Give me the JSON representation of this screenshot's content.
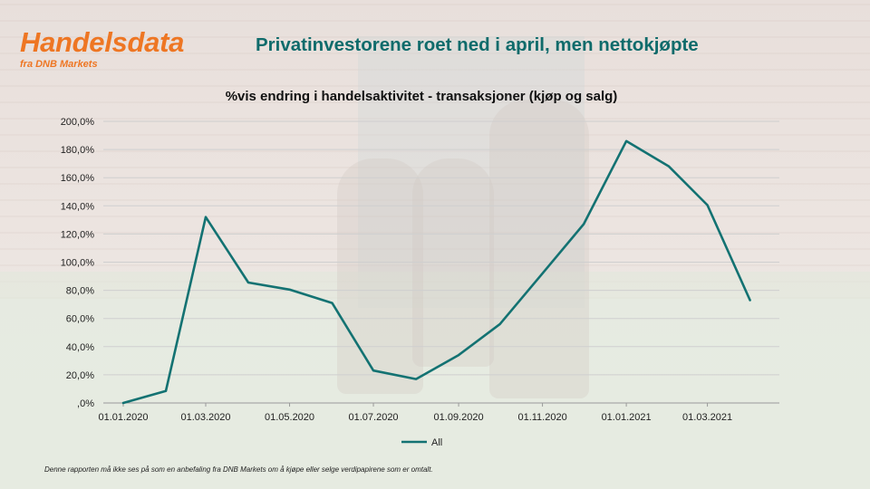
{
  "brand": {
    "title": "Handelsdata",
    "subtitle": "fra DNB Markets"
  },
  "headline": "Privatinvestorene roet ned i april, men nettokjøpte",
  "disclaimer": "Denne rapporten må ikke ses på som en anbefaling fra DNB Markets om å kjøpe eller selge verdipapirene som er omtalt.",
  "colors": {
    "brand_orange": "#ee7623",
    "headline_teal": "#0f6b6b",
    "series_line": "#137272"
  },
  "chart_data": {
    "type": "line",
    "title": "%vis endring i handelsaktivitet - transaksjoner (kjøp og salg)",
    "x": [
      "2020-01-01",
      "2020-02-01",
      "2020-03-01",
      "2020-04-01",
      "2020-05-01",
      "2020-06-01",
      "2020-07-01",
      "2020-08-01",
      "2020-09-01",
      "2020-10-01",
      "2020-11-01",
      "2020-12-01",
      "2021-01-01",
      "2021-02-01",
      "2021-03-01",
      "2021-04-01"
    ],
    "x_tick_labels": [
      "01.01.2020",
      "01.03.2020",
      "01.05.2020",
      "01.07.2020",
      "01.09.2020",
      "01.11.2020",
      "01.01.2021",
      "01.03.2021"
    ],
    "y_tick_labels": [
      "200,0%",
      "180,0%",
      "160,0%",
      "140,0%",
      "120,0%",
      "100,0%",
      "80,0%",
      "60,0%",
      "40,0%",
      "20,0%",
      ",0%"
    ],
    "series": [
      {
        "name": "All",
        "values": [
          0,
          8.5,
          132,
          85.5,
          80.5,
          71,
          23,
          17,
          34,
          56,
          92,
          127,
          186,
          168,
          140.5,
          73
        ]
      }
    ],
    "ylim": [
      0,
      200
    ],
    "grid": true,
    "legend": "bottom"
  }
}
